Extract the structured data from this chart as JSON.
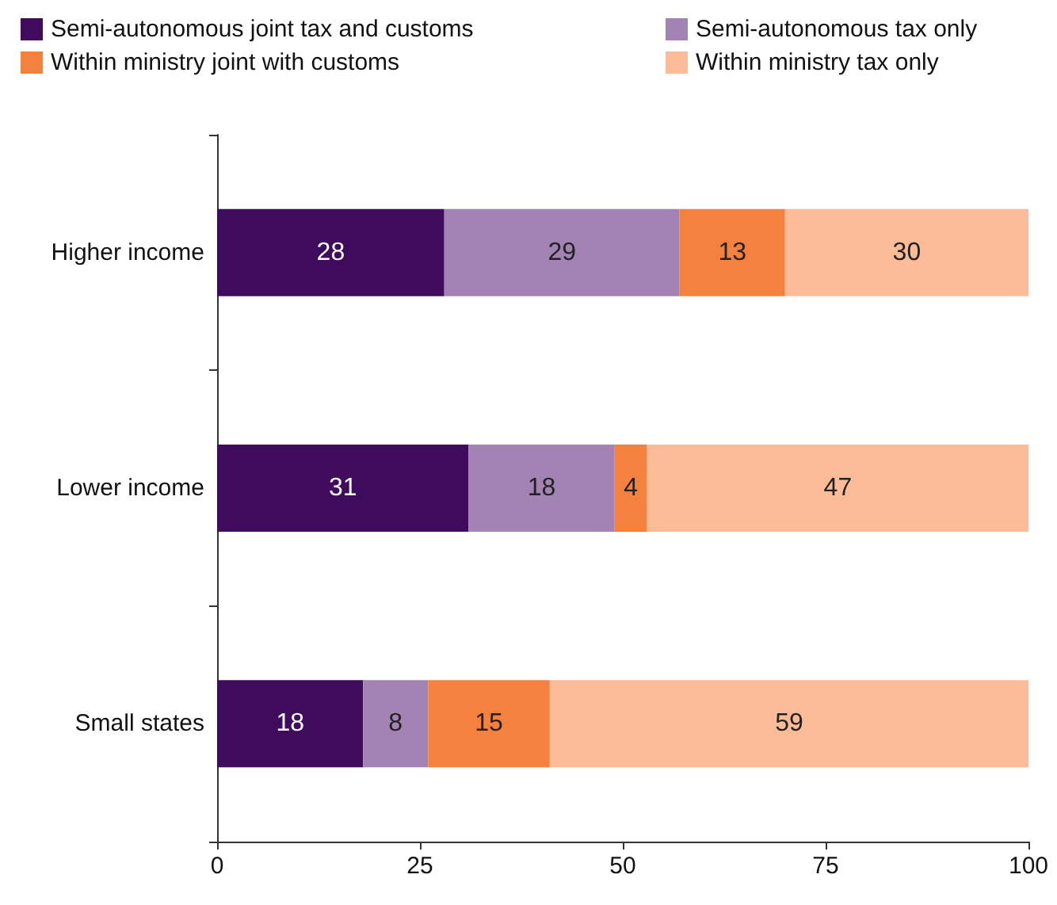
{
  "chart_data": {
    "type": "bar",
    "orientation": "horizontal",
    "stacked": true,
    "categories": [
      "Higher income",
      "Lower income",
      "Small states"
    ],
    "series": [
      {
        "name": "Semi-autonomous joint tax and customs",
        "color": "#3f0b5c",
        "values": [
          28,
          31,
          18
        ]
      },
      {
        "name": "Semi-autonomous tax only",
        "color": "#a283b4",
        "values": [
          29,
          18,
          8
        ]
      },
      {
        "name": "Within ministry joint with customs",
        "color": "#f5813f",
        "values": [
          13,
          4,
          15
        ]
      },
      {
        "name": "Within ministry tax only",
        "color": "#fcbc98",
        "values": [
          30,
          47,
          59
        ]
      }
    ],
    "xlim": [
      0,
      100
    ],
    "xticks": [
      0,
      25,
      50,
      75,
      100
    ],
    "data_labels": true,
    "legend": "top",
    "grid": false
  }
}
